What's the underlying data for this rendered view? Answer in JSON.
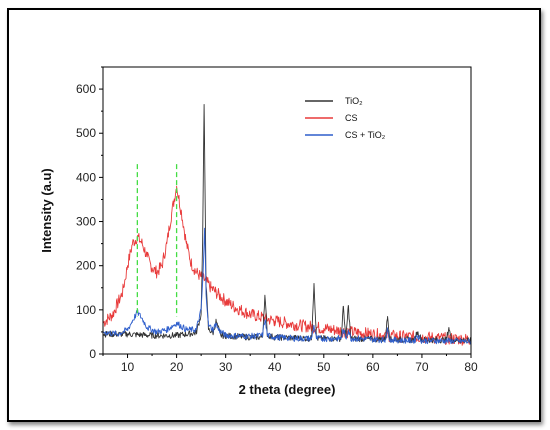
{
  "chart_data": {
    "type": "line",
    "title": "",
    "xlabel": "2 theta (degree)",
    "ylabel": "Intensity (a.u)",
    "xlim": [
      5,
      80
    ],
    "ylim": [
      0,
      650
    ],
    "x_ticks": [
      "10",
      "20",
      "30",
      "40",
      "50",
      "60",
      "70",
      "80"
    ],
    "x_tick_values": [
      10,
      20,
      30,
      40,
      50,
      60,
      70,
      80
    ],
    "y_ticks": [
      "0",
      "100",
      "200",
      "300",
      "400",
      "500",
      "600"
    ],
    "y_tick_values": [
      0,
      100,
      200,
      300,
      400,
      500,
      600
    ],
    "grid": false,
    "legend_position": "top-right",
    "reference_lines": {
      "x": [
        12,
        20
      ],
      "color": "#44dd44",
      "style": "dashed"
    },
    "series": [
      {
        "name": "TiO₂",
        "color": "#333333",
        "x": [
          5,
          10,
          15,
          20,
          24,
          25,
          25.3,
          25.6,
          26,
          26.5,
          27.5,
          28,
          29,
          35,
          37.5,
          38,
          38.5,
          40,
          47.5,
          48,
          48.5,
          53.5,
          54,
          54.5,
          55,
          55.5,
          56,
          62.5,
          63,
          63.5,
          68.5,
          69,
          70,
          75,
          75.5,
          76,
          80
        ],
        "y": [
          45,
          45,
          42,
          42,
          48,
          90,
          250,
          565,
          160,
          55,
          48,
          75,
          42,
          38,
          38,
          132,
          42,
          38,
          35,
          160,
          35,
          35,
          108,
          35,
          110,
          35,
          35,
          33,
          85,
          33,
          32,
          50,
          32,
          32,
          60,
          32,
          30
        ]
      },
      {
        "name": "CS",
        "color": "#e83a3a",
        "x": [
          5,
          7,
          9,
          10,
          11,
          12,
          13,
          14,
          15,
          16,
          17,
          18,
          19,
          20,
          21,
          22,
          23,
          24,
          25,
          26,
          27,
          28,
          30,
          32,
          35,
          40,
          45,
          50,
          55,
          60,
          65,
          70,
          75,
          80
        ],
        "y": [
          70,
          90,
          140,
          200,
          250,
          265,
          250,
          220,
          195,
          185,
          200,
          250,
          320,
          380,
          320,
          250,
          205,
          185,
          175,
          165,
          150,
          140,
          120,
          105,
          90,
          75,
          65,
          58,
          50,
          45,
          40,
          38,
          35,
          33
        ]
      },
      {
        "name": "CS + TiO₂",
        "color": "#2f5fcc",
        "x": [
          5,
          8,
          10,
          11,
          12,
          13,
          14,
          16,
          18,
          20,
          22,
          24,
          25,
          25.4,
          25.7,
          26,
          26.5,
          27.5,
          28,
          28.5,
          30,
          35,
          37.5,
          38,
          38.5,
          40,
          45,
          47.5,
          48,
          48.5,
          53.5,
          54,
          54.5,
          55,
          55.5,
          56,
          62.5,
          63,
          63.5,
          68.5,
          69,
          70,
          75,
          80
        ],
        "y": [
          50,
          45,
          55,
          75,
          95,
          80,
          60,
          50,
          55,
          70,
          55,
          55,
          100,
          180,
          285,
          140,
          65,
          55,
          70,
          55,
          42,
          40,
          42,
          78,
          42,
          38,
          35,
          35,
          65,
          35,
          35,
          55,
          35,
          55,
          35,
          35,
          32,
          55,
          32,
          30,
          42,
          30,
          30,
          28
        ]
      }
    ]
  }
}
